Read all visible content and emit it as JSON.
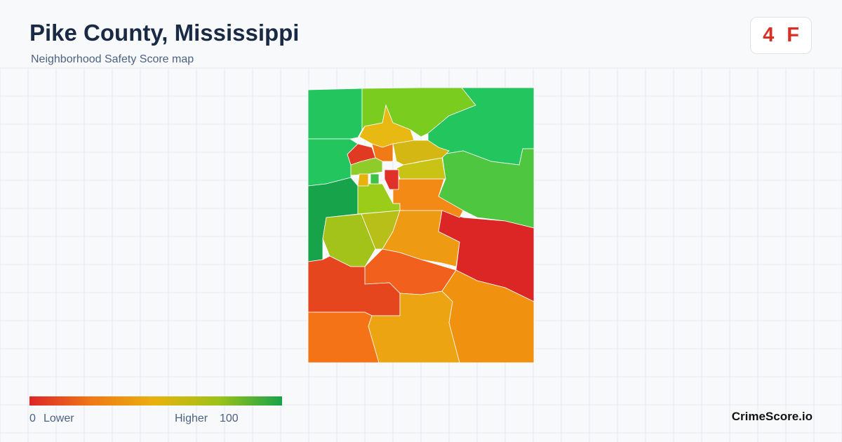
{
  "header": {
    "title": "Pike County, Mississippi",
    "subtitle": "Neighborhood Safety Score map"
  },
  "badge": {
    "score": "4",
    "grade": "F"
  },
  "legend": {
    "min": "0",
    "min_label": "Lower",
    "max_label": "Higher",
    "max": "100"
  },
  "footer": {
    "brand": "CrimeScore.io"
  }
}
